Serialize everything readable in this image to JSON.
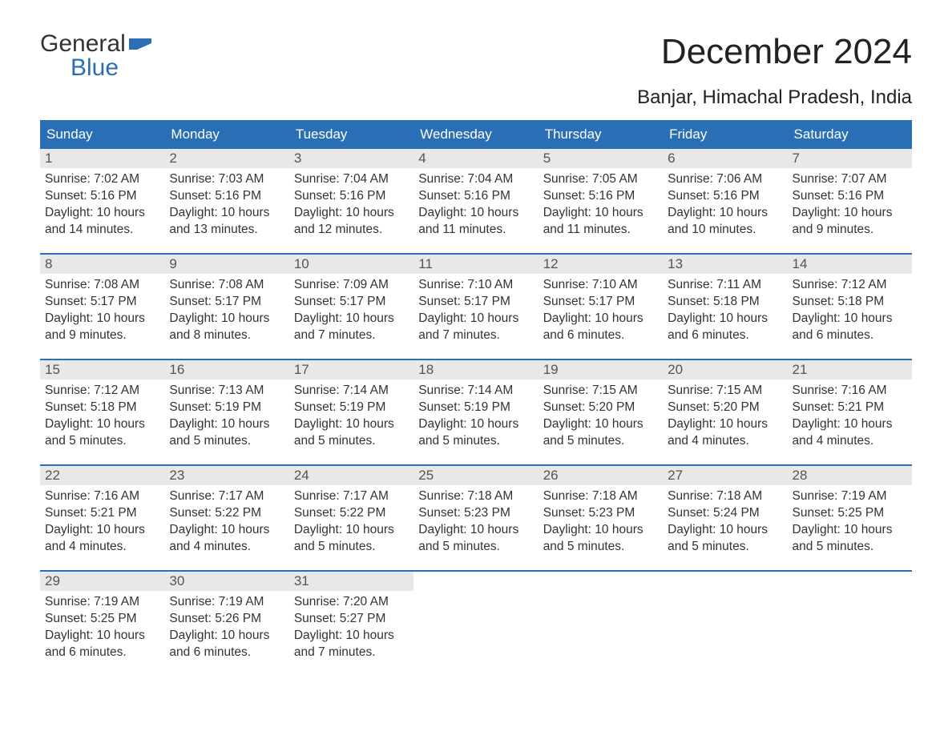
{
  "brand": {
    "line1": "General",
    "line2": "Blue",
    "flag_color": "#2a6fb5"
  },
  "title": "December 2024",
  "subtitle": "Banjar, Himachal Pradesh, India",
  "day_headers": [
    "Sunday",
    "Monday",
    "Tuesday",
    "Wednesday",
    "Thursday",
    "Friday",
    "Saturday"
  ],
  "colors": {
    "header_bg": "#2a6fb5",
    "header_text": "#ffffff",
    "daynum_bg": "#e8e8e8",
    "week_border": "#2a6fb5",
    "text": "#333333",
    "background": "#ffffff"
  },
  "typography": {
    "title_fontsize": 44,
    "subtitle_fontsize": 24,
    "dayhead_fontsize": 17,
    "body_fontsize": 15.5
  },
  "weeks": [
    [
      {
        "n": "1",
        "sunrise": "7:02 AM",
        "sunset": "5:16 PM",
        "daylight": "10 hours and 14 minutes."
      },
      {
        "n": "2",
        "sunrise": "7:03 AM",
        "sunset": "5:16 PM",
        "daylight": "10 hours and 13 minutes."
      },
      {
        "n": "3",
        "sunrise": "7:04 AM",
        "sunset": "5:16 PM",
        "daylight": "10 hours and 12 minutes."
      },
      {
        "n": "4",
        "sunrise": "7:04 AM",
        "sunset": "5:16 PM",
        "daylight": "10 hours and 11 minutes."
      },
      {
        "n": "5",
        "sunrise": "7:05 AM",
        "sunset": "5:16 PM",
        "daylight": "10 hours and 11 minutes."
      },
      {
        "n": "6",
        "sunrise": "7:06 AM",
        "sunset": "5:16 PM",
        "daylight": "10 hours and 10 minutes."
      },
      {
        "n": "7",
        "sunrise": "7:07 AM",
        "sunset": "5:16 PM",
        "daylight": "10 hours and 9 minutes."
      }
    ],
    [
      {
        "n": "8",
        "sunrise": "7:08 AM",
        "sunset": "5:17 PM",
        "daylight": "10 hours and 9 minutes."
      },
      {
        "n": "9",
        "sunrise": "7:08 AM",
        "sunset": "5:17 PM",
        "daylight": "10 hours and 8 minutes."
      },
      {
        "n": "10",
        "sunrise": "7:09 AM",
        "sunset": "5:17 PM",
        "daylight": "10 hours and 7 minutes."
      },
      {
        "n": "11",
        "sunrise": "7:10 AM",
        "sunset": "5:17 PM",
        "daylight": "10 hours and 7 minutes."
      },
      {
        "n": "12",
        "sunrise": "7:10 AM",
        "sunset": "5:17 PM",
        "daylight": "10 hours and 6 minutes."
      },
      {
        "n": "13",
        "sunrise": "7:11 AM",
        "sunset": "5:18 PM",
        "daylight": "10 hours and 6 minutes."
      },
      {
        "n": "14",
        "sunrise": "7:12 AM",
        "sunset": "5:18 PM",
        "daylight": "10 hours and 6 minutes."
      }
    ],
    [
      {
        "n": "15",
        "sunrise": "7:12 AM",
        "sunset": "5:18 PM",
        "daylight": "10 hours and 5 minutes."
      },
      {
        "n": "16",
        "sunrise": "7:13 AM",
        "sunset": "5:19 PM",
        "daylight": "10 hours and 5 minutes."
      },
      {
        "n": "17",
        "sunrise": "7:14 AM",
        "sunset": "5:19 PM",
        "daylight": "10 hours and 5 minutes."
      },
      {
        "n": "18",
        "sunrise": "7:14 AM",
        "sunset": "5:19 PM",
        "daylight": "10 hours and 5 minutes."
      },
      {
        "n": "19",
        "sunrise": "7:15 AM",
        "sunset": "5:20 PM",
        "daylight": "10 hours and 5 minutes."
      },
      {
        "n": "20",
        "sunrise": "7:15 AM",
        "sunset": "5:20 PM",
        "daylight": "10 hours and 4 minutes."
      },
      {
        "n": "21",
        "sunrise": "7:16 AM",
        "sunset": "5:21 PM",
        "daylight": "10 hours and 4 minutes."
      }
    ],
    [
      {
        "n": "22",
        "sunrise": "7:16 AM",
        "sunset": "5:21 PM",
        "daylight": "10 hours and 4 minutes."
      },
      {
        "n": "23",
        "sunrise": "7:17 AM",
        "sunset": "5:22 PM",
        "daylight": "10 hours and 4 minutes."
      },
      {
        "n": "24",
        "sunrise": "7:17 AM",
        "sunset": "5:22 PM",
        "daylight": "10 hours and 5 minutes."
      },
      {
        "n": "25",
        "sunrise": "7:18 AM",
        "sunset": "5:23 PM",
        "daylight": "10 hours and 5 minutes."
      },
      {
        "n": "26",
        "sunrise": "7:18 AM",
        "sunset": "5:23 PM",
        "daylight": "10 hours and 5 minutes."
      },
      {
        "n": "27",
        "sunrise": "7:18 AM",
        "sunset": "5:24 PM",
        "daylight": "10 hours and 5 minutes."
      },
      {
        "n": "28",
        "sunrise": "7:19 AM",
        "sunset": "5:25 PM",
        "daylight": "10 hours and 5 minutes."
      }
    ],
    [
      {
        "n": "29",
        "sunrise": "7:19 AM",
        "sunset": "5:25 PM",
        "daylight": "10 hours and 6 minutes."
      },
      {
        "n": "30",
        "sunrise": "7:19 AM",
        "sunset": "5:26 PM",
        "daylight": "10 hours and 6 minutes."
      },
      {
        "n": "31",
        "sunrise": "7:20 AM",
        "sunset": "5:27 PM",
        "daylight": "10 hours and 7 minutes."
      },
      {
        "empty": true
      },
      {
        "empty": true
      },
      {
        "empty": true
      },
      {
        "empty": true
      }
    ]
  ],
  "labels": {
    "sunrise": "Sunrise:",
    "sunset": "Sunset:",
    "daylight": "Daylight:"
  }
}
